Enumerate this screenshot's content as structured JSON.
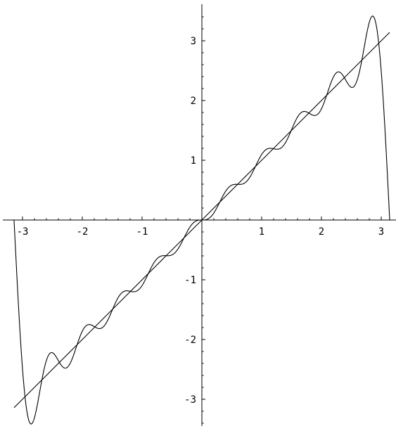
{
  "chart_data": {
    "type": "line",
    "title": "",
    "xlabel": "",
    "ylabel": "",
    "xlim": [
      -3.14159,
      3.14159
    ],
    "ylim": [
      -3.45,
      3.55
    ],
    "grid": false,
    "axes_origin": [
      0,
      0
    ],
    "x_ticks": [
      -3,
      -2,
      -1,
      1,
      2,
      3
    ],
    "x_tick_labels": [
      "-3",
      "-2",
      "-1",
      "1",
      "2",
      "3"
    ],
    "y_ticks": [
      -3,
      -2,
      -1,
      1,
      2,
      3
    ],
    "y_tick_labels": [
      "-3",
      "-2",
      "-1",
      "1",
      "2",
      "3"
    ],
    "x_minor_step": 0.2,
    "y_minor_step": 0.2,
    "series": [
      {
        "function": "y = x",
        "domain": [
          -3.14159,
          3.14159
        ]
      },
      {
        "function": "Fourier partial sum of x: sum_{n=1}^{10} 2(-1)^(n+1) sin(nx)/n",
        "terms": 10,
        "domain": [
          -3.14159,
          3.14159
        ]
      }
    ]
  }
}
